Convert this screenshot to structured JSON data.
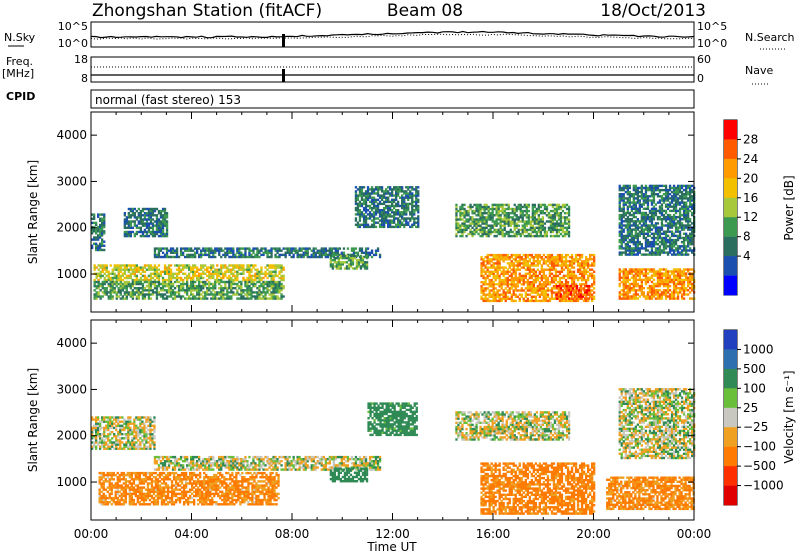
{
  "header": {
    "title": "Zhongshan Station (fitACF)",
    "beam": "Beam 08",
    "date": "18/Oct/2013"
  },
  "mode_label": "normal (fast stereo) 153",
  "side_labels": {
    "nsky": "N.Sky",
    "nsearch": "N.Search",
    "freq_line1": "Freq.",
    "freq_line2": "[MHz]",
    "cpid": "CPID",
    "nave": "Nave"
  },
  "panel_ticks": {
    "noise_left_top": "10^5",
    "noise_left_bottom": "10^0",
    "noise_right_top": "10^5",
    "noise_right_bottom": "10^0",
    "freq_left_top": "18",
    "freq_left_bottom": "8",
    "nave_right_top": "60",
    "nave_right_bottom": "0"
  },
  "colorbars": {
    "power": {
      "label": "Power [dB]",
      "ticks": [
        "28",
        "24",
        "20",
        "16",
        "12",
        "8",
        "4"
      ],
      "colors": [
        "#ff0000",
        "#ff5a00",
        "#ff9a00",
        "#f2c000",
        "#a8c83c",
        "#3c9a50",
        "#2a6e60",
        "#1a4fb0",
        "#0000ff"
      ]
    },
    "velocity": {
      "label": "Velocity [m s⁻¹]",
      "ticks": [
        "1000",
        "500",
        "100",
        "25",
        "−25",
        "−100",
        "−500",
        "−1000"
      ],
      "colors": [
        "#2040c0",
        "#2e6fb0",
        "#2f8a55",
        "#6abf3a",
        "#c8c8c0",
        "#f0a020",
        "#ff7a00",
        "#ff3000",
        "#e00000"
      ]
    }
  },
  "chart_data": [
    {
      "type": "heatmap",
      "name": "Power",
      "ylabel": "Slant Range [km]",
      "xlabel": "",
      "ylim": [
        180,
        4500
      ],
      "yticks": [
        "4000",
        "3000",
        "2000",
        "1000"
      ],
      "xlim_hours": [
        0,
        24
      ],
      "regions": [
        {
          "t0": 0.1,
          "t1": 7.7,
          "r0": 850,
          "r1": 1200,
          "level_db": 18
        },
        {
          "t0": 0.1,
          "t1": 7.7,
          "r0": 450,
          "r1": 850,
          "level_db": 12
        },
        {
          "t0": 2.5,
          "t1": 11.5,
          "r0": 1350,
          "r1": 1550,
          "level_db": 8
        },
        {
          "t0": 9.5,
          "t1": 11.0,
          "r0": 1100,
          "r1": 1400,
          "level_db": 12
        },
        {
          "t0": 15.5,
          "t1": 20.0,
          "r0": 400,
          "r1": 1400,
          "level_db": 24
        },
        {
          "t0": 18.5,
          "t1": 19.8,
          "r0": 450,
          "r1": 750,
          "level_db": 28
        },
        {
          "t0": 21.0,
          "t1": 24.0,
          "r0": 450,
          "r1": 1100,
          "level_db": 24
        },
        {
          "t0": 10.5,
          "t1": 13.0,
          "r0": 2000,
          "r1": 2900,
          "level_db": 8
        },
        {
          "t0": 14.5,
          "t1": 19.0,
          "r0": 1800,
          "r1": 2500,
          "level_db": 12
        },
        {
          "t0": 21.0,
          "t1": 24.0,
          "r0": 1400,
          "r1": 2900,
          "level_db": 8
        },
        {
          "t0": 0.0,
          "t1": 0.5,
          "r0": 1500,
          "r1": 2300,
          "level_db": 8
        },
        {
          "t0": 1.3,
          "t1": 3.0,
          "r0": 1800,
          "r1": 2400,
          "level_db": 8
        }
      ]
    },
    {
      "type": "heatmap",
      "name": "Velocity",
      "ylabel": "Slant Range [km]",
      "xlabel": "Time UT",
      "ylim": [
        180,
        4500
      ],
      "yticks": [
        "4000",
        "3000",
        "2000",
        "1000"
      ],
      "xticks": [
        "00:00",
        "04:00",
        "08:00",
        "12:00",
        "16:00",
        "20:00",
        "00:00"
      ],
      "xlim_hours": [
        0,
        24
      ],
      "regions": [
        {
          "t0": 0.3,
          "t1": 7.5,
          "r0": 500,
          "r1": 1200,
          "vel": -120
        },
        {
          "t0": 2.5,
          "t1": 11.5,
          "r0": 1250,
          "r1": 1550,
          "vel": 0
        },
        {
          "t0": 9.5,
          "t1": 11.0,
          "r0": 1000,
          "r1": 1300,
          "vel": 200
        },
        {
          "t0": 15.5,
          "t1": 20.0,
          "r0": 300,
          "r1": 1400,
          "vel": -150
        },
        {
          "t0": 20.5,
          "t1": 24.0,
          "r0": 400,
          "r1": 1100,
          "vel": -120
        },
        {
          "t0": 11.0,
          "t1": 13.0,
          "r0": 2000,
          "r1": 2700,
          "vel": 150
        },
        {
          "t0": 14.5,
          "t1": 19.0,
          "r0": 1900,
          "r1": 2500,
          "vel": 0
        },
        {
          "t0": 21.0,
          "t1": 24.0,
          "r0": 1500,
          "r1": 3000,
          "vel": 0
        },
        {
          "t0": 0.0,
          "t1": 2.5,
          "r0": 1700,
          "r1": 2400,
          "vel": 0
        }
      ]
    }
  ]
}
